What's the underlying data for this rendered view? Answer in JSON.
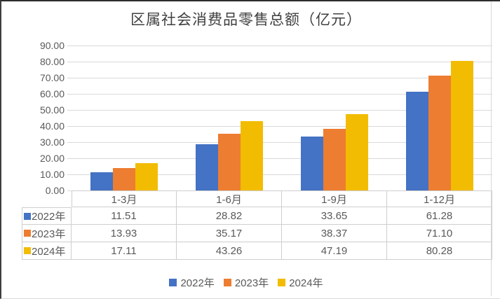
{
  "chart_data": {
    "type": "bar",
    "title": "区属社会消费品零售总额（亿元）",
    "categories": [
      "1-3月",
      "1-6月",
      "1-9月",
      "1-12月"
    ],
    "series": [
      {
        "name": "2022年",
        "color": "#4472C4",
        "values": [
          11.51,
          28.82,
          33.65,
          61.28
        ]
      },
      {
        "name": "2023年",
        "color": "#ED7D31",
        "values": [
          13.93,
          35.17,
          38.37,
          71.1
        ]
      },
      {
        "name": "2024年",
        "color": "#F2BC02",
        "values": [
          17.11,
          43.26,
          47.19,
          80.28
        ]
      }
    ],
    "xlabel": "",
    "ylabel": "",
    "ylim": [
      0,
      90
    ],
    "ytick_step": 10,
    "ytick_format_decimals": 2,
    "grid": true,
    "legend_position": "bottom",
    "data_table_shown": true
  },
  "colors": {
    "gridline": "#D9D9D9",
    "table_border": "#D0CECE",
    "axis_text": "#595959",
    "title_text": "#3F3F3F"
  }
}
